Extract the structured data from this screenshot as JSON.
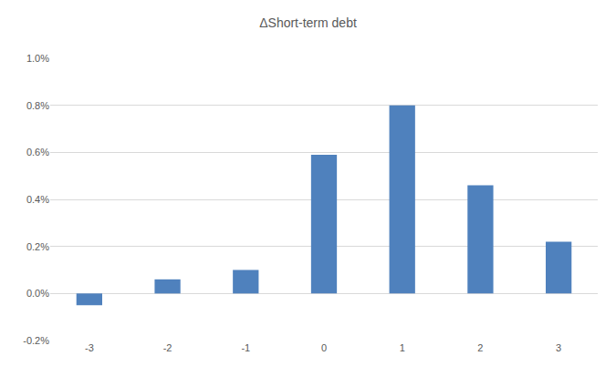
{
  "chart_data": {
    "type": "bar",
    "title": "ΔShort-term debt",
    "categories": [
      "-3",
      "-2",
      "-1",
      "0",
      "1",
      "2",
      "3"
    ],
    "values": [
      -0.05,
      0.06,
      0.1,
      0.59,
      0.8,
      0.46,
      0.22
    ],
    "color": "#4f81bd",
    "ylim": [
      -0.2,
      1.0
    ],
    "yticks": [
      {
        "value": -0.2,
        "label": "-0.2%"
      },
      {
        "value": 0,
        "label": "0.0%"
      },
      {
        "value": 0.2,
        "label": "0.2%"
      },
      {
        "value": 0.4,
        "label": "0.4%"
      },
      {
        "value": 0.6,
        "label": "0.6%"
      },
      {
        "value": 0.8,
        "label": "0.8%"
      },
      {
        "value": 1.0,
        "label": "1.0%"
      }
    ],
    "grid": true
  }
}
